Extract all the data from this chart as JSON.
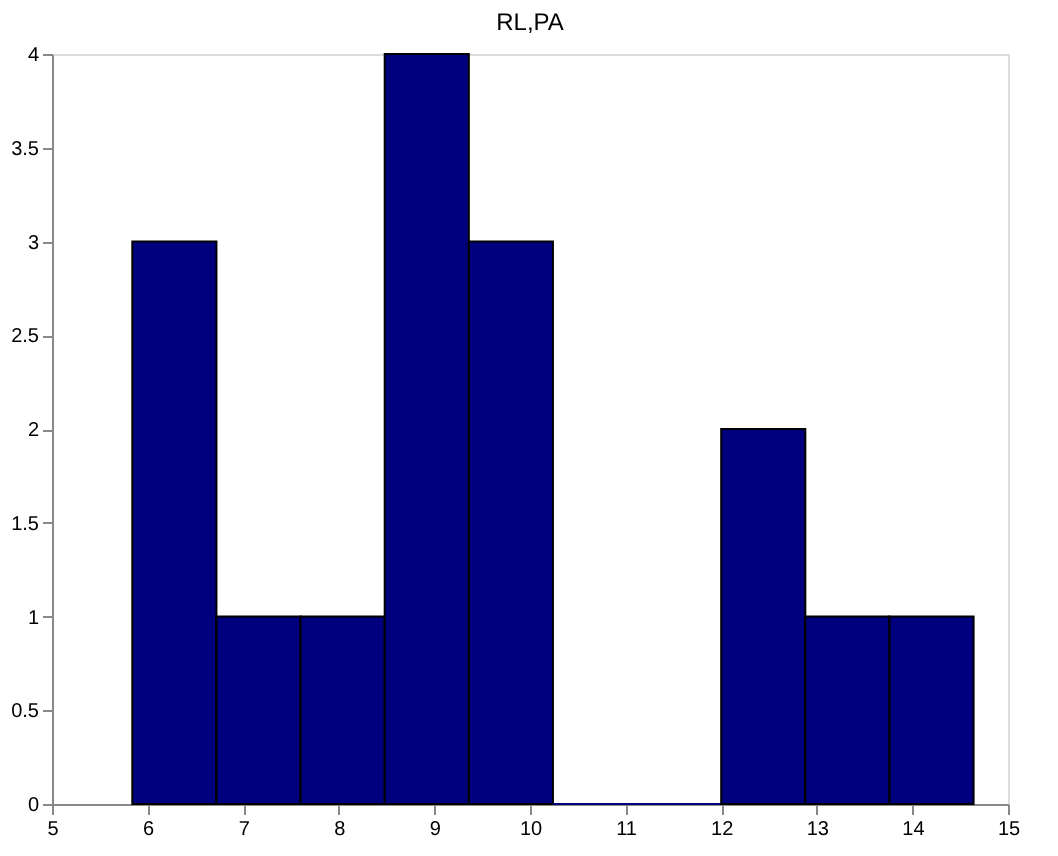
{
  "chart_data": {
    "type": "histogram",
    "title": "RL,PA",
    "bins": [
      5.84,
      6.72,
      7.6,
      8.48,
      9.36,
      10.24,
      11.12,
      12.0,
      12.88,
      13.76,
      14.64
    ],
    "values": [
      3,
      1,
      1,
      4,
      3,
      0,
      0,
      2,
      1,
      1
    ],
    "color": "#00007f",
    "xlim": [
      5,
      15
    ],
    "xticks": [
      5,
      6,
      7,
      8,
      9,
      10,
      11,
      12,
      13,
      14,
      15
    ],
    "ylim": [
      0,
      4
    ],
    "yticks": [
      0,
      0.5,
      1,
      1.5,
      2,
      2.5,
      3,
      3.5,
      4
    ],
    "grid": false
  }
}
